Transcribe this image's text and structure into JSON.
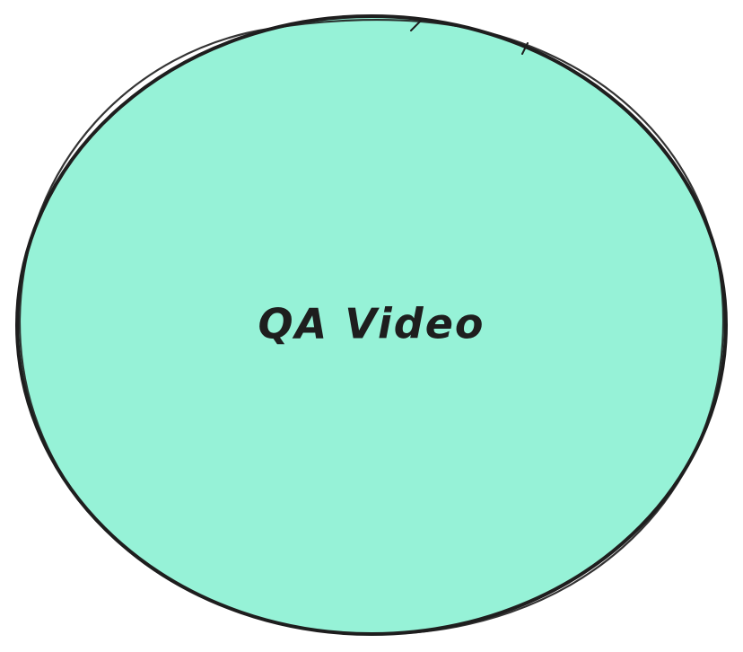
{
  "diagram": {
    "nodes": [
      {
        "id": "qa-video",
        "shape": "ellipse",
        "label": "QA Video",
        "fill": "#96f2d7",
        "stroke": "#1e1e1e"
      }
    ]
  }
}
